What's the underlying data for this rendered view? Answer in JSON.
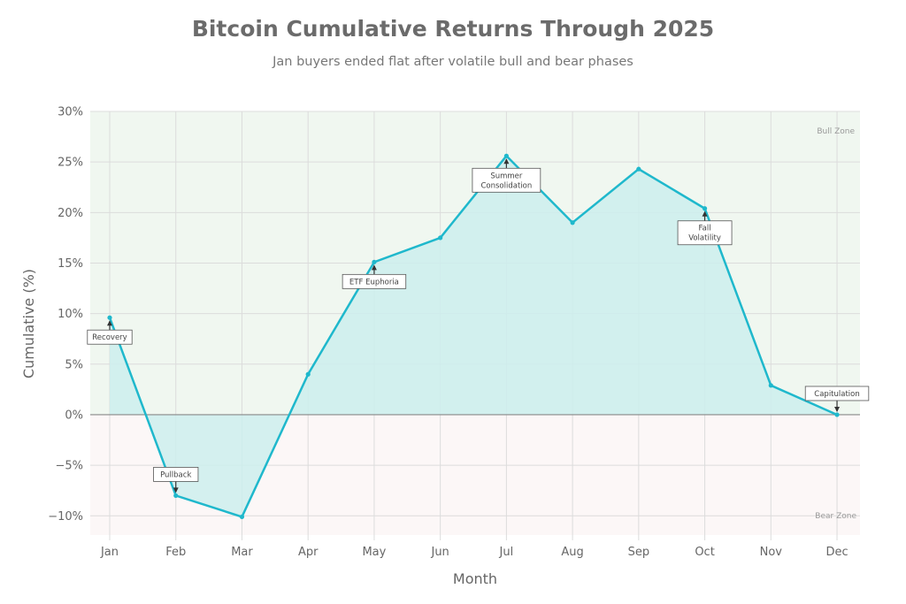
{
  "chart_data": {
    "type": "area",
    "title": "Bitcoin Cumulative Returns Through 2025",
    "subtitle": "Jan buyers ended flat after volatile bull and bear phases",
    "xlabel": "Month",
    "ylabel": "Cumulative (%)",
    "categories": [
      "Jan",
      "Feb",
      "Mar",
      "Apr",
      "May",
      "Jun",
      "Jul",
      "Aug",
      "Sep",
      "Oct",
      "Nov",
      "Dec"
    ],
    "values": [
      9.6,
      -8.0,
      -10.1,
      4.0,
      15.1,
      17.5,
      25.6,
      19.0,
      24.3,
      20.4,
      2.9,
      0.0
    ],
    "ylim": [
      -12,
      30
    ],
    "yticks": [
      -10,
      -5,
      0,
      5,
      10,
      15,
      20,
      25,
      30
    ],
    "ytick_labels": [
      "−10%",
      "−5%",
      "0%",
      "5%",
      "10%",
      "15%",
      "20%",
      "25%",
      "30%"
    ],
    "grid": true,
    "zones": {
      "bull": "Bull Zone",
      "bear": "Bear Zone"
    },
    "annotations": [
      {
        "month": "Jan",
        "text": "Recovery",
        "position": "below"
      },
      {
        "month": "Feb",
        "text": "Pullback",
        "position": "above"
      },
      {
        "month": "May",
        "text": "ETF Euphoria",
        "position": "below"
      },
      {
        "month": "Jul",
        "text": "Summer\nConsolidation",
        "position": "below"
      },
      {
        "month": "Oct",
        "text": "Fall\nVolatility",
        "position": "below"
      },
      {
        "month": "Dec",
        "text": "Capitulation",
        "position": "above"
      }
    ],
    "colors": {
      "line": "#1fb8cc",
      "fill": "#cdeeed",
      "bull_bg": "#f0f7f0",
      "bear_bg": "#fcf7f7",
      "zero_line": "#888888"
    }
  }
}
